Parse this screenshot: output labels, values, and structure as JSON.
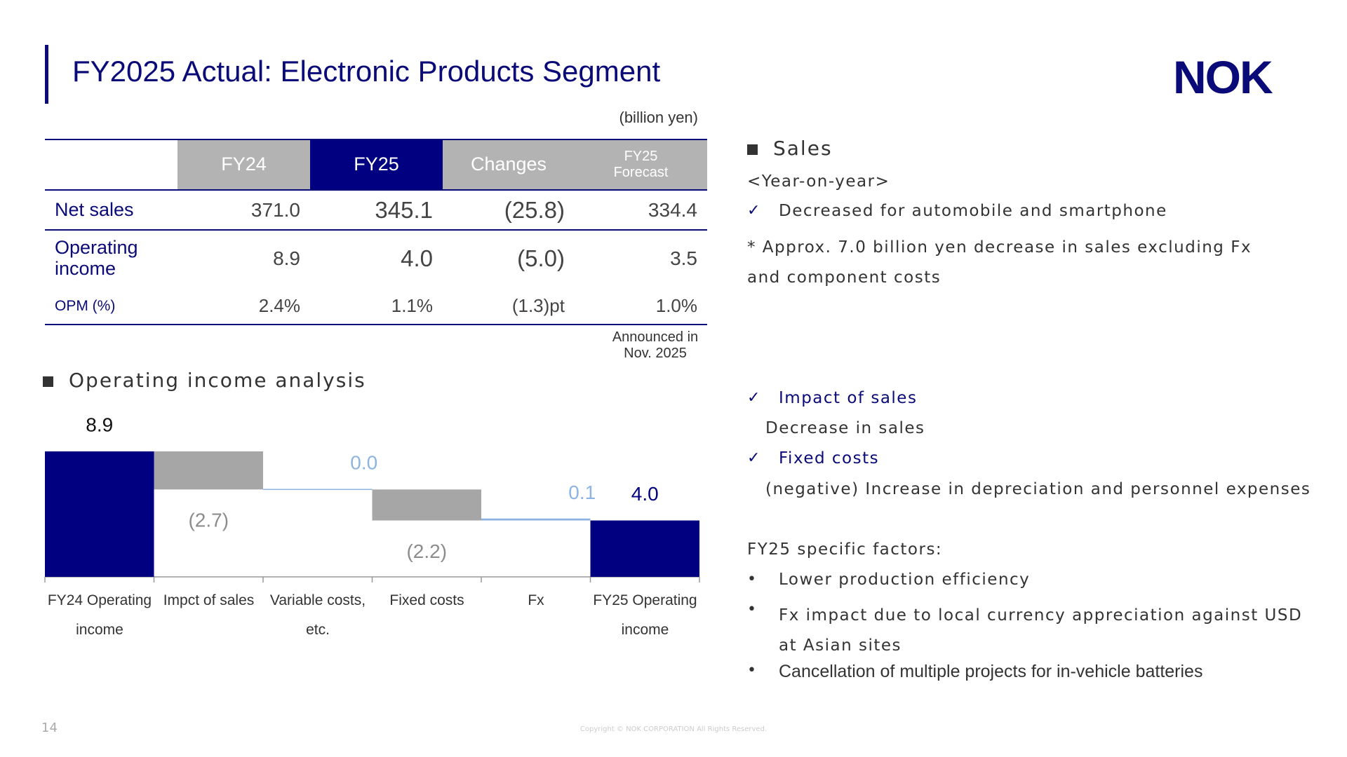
{
  "header": {
    "title": "FY2025 Actual: Electronic Products Segment",
    "logo": "NOK"
  },
  "table": {
    "unit": "(billion yen)",
    "columns": [
      "FY24",
      "FY25",
      "Changes",
      "FY25 Forecast"
    ],
    "rows": [
      [
        "Net sales",
        "371.0",
        "345.1",
        "(25.8)",
        "334.4"
      ],
      [
        "Operating income",
        "8.9",
        "4.0",
        "(5.0)",
        "3.5"
      ],
      [
        "OPM (%)",
        "2.4%",
        "1.1%",
        "(1.3)pt",
        "1.0%"
      ]
    ],
    "note": "Announced in Nov. 2025"
  },
  "chart_data": {
    "type": "waterfall",
    "title": "Operating income analysis",
    "categories": [
      "FY24 Operating income",
      "Impct of sales",
      "Variable costs, etc.",
      "Fixed costs",
      "Fx",
      "FY25 Operating income"
    ],
    "values": [
      8.9,
      -2.7,
      0.0,
      -2.2,
      0.1,
      4.0
    ],
    "value_labels": [
      "8.9",
      "(2.7)",
      "0.0",
      "(2.2)",
      "0.1",
      "4.0"
    ],
    "measures": [
      "total",
      "relative",
      "relative",
      "relative",
      "relative",
      "total"
    ],
    "colors": {
      "total": "#000080",
      "decrease": "#a6a6a6",
      "increase": "#8eb4e3"
    }
  },
  "commentary": {
    "sales_heading": "Sales",
    "yoy": "<Year-on-year>",
    "yoy_point": "Decreased for automobile and smartphone",
    "yoy_note": "* Approx. 7.0 billion yen decrease in sales excluding Fx and component costs",
    "impact_heading": "Impact of sales",
    "impact_text": "Decrease in sales",
    "fixed_heading": "Fixed costs",
    "fixed_text": "(negative) Increase in depreciation and personnel expenses",
    "specific_heading": "FY25 specific factors:",
    "specific_items": [
      "Lower production efficiency",
      "Fx impact due to local currency appreciation against USD at Asian sites",
      "Cancellation of multiple projects for in-vehicle batteries"
    ]
  },
  "footer": {
    "page": "14",
    "copyright": "Copyright © NOK CORPORATION All Rights Reserved."
  }
}
